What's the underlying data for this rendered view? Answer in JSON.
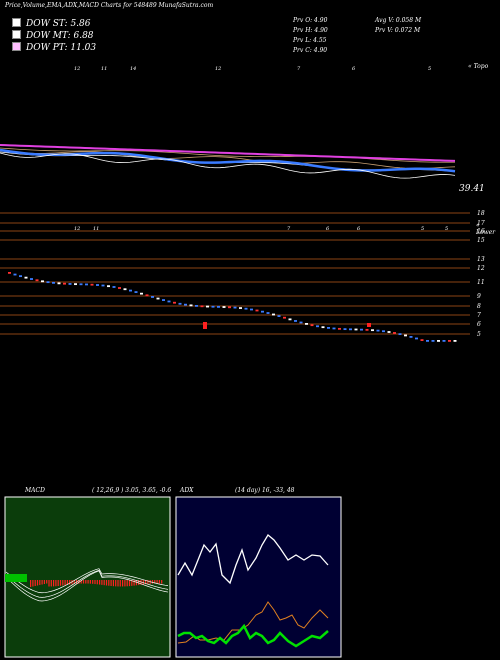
{
  "header": {
    "title": "Price,Volume,EMA,ADX,MACD Charts for 548489 MunafaSutra.com",
    "dow_st": "DOW ST: 5.86",
    "dow_mt": "DOW MT: 6.88",
    "dow_pt": "DOW PT: 11.03",
    "prv_o": "Prv  O: 4.90",
    "prv_h": "Prv  H: 4.90",
    "prv_l": "Prv  L: 4.55",
    "prv_c": "Prv  C: 4.90",
    "avg_v": "Avg V: 0.058  M",
    "prv_v": "Prv  V: 0.072  M"
  },
  "colors": {
    "st": "#ffffff",
    "mt": "#ffffff",
    "pt": "#ffc0ff",
    "grid": "#8b4513",
    "ema_main": "#3a7bff",
    "ema_pink": "#e040e0",
    "macd_bg": "#0b3d0b",
    "adx_bg": "#000033",
    "hist": "#ff2020"
  },
  "top_chart": {
    "topo_label": "« Topo",
    "last_value": "39.41",
    "date_labels": [
      "12",
      "11",
      "14",
      "12",
      "7",
      "6",
      "5"
    ]
  },
  "price_chart": {
    "lower_label": "« Lower",
    "date_labels": [
      "12",
      "11",
      "7",
      "6",
      "6",
      "5",
      "5"
    ],
    "levels": [
      "18",
      "17",
      "16",
      "15",
      "13",
      "12",
      "11",
      "9",
      "8",
      "7",
      "6",
      "5"
    ]
  },
  "macd": {
    "label": "MACD",
    "params": "( 12,26,9 ) 3.05,  3.65,  -0.6"
  },
  "adx": {
    "label": "ADX",
    "params": "(14  day) 16,  -33,  48"
  },
  "chart_data": [
    {
      "type": "line",
      "title": "EMA",
      "series": [],
      "ylim": [
        38,
        60
      ]
    },
    {
      "type": "scatter",
      "title": "Price",
      "yticks": [
        18,
        17,
        16,
        15,
        13,
        12,
        11,
        9,
        8,
        7,
        6,
        5
      ],
      "ylim": [
        4.5,
        18.5
      ]
    },
    {
      "type": "line",
      "title": "MACD",
      "params": "( 12,26,9 ) 3.05,  3.65,  -0.6"
    },
    {
      "type": "line",
      "title": "ADX",
      "params": "(14  day) 16,  -33,  48"
    }
  ]
}
